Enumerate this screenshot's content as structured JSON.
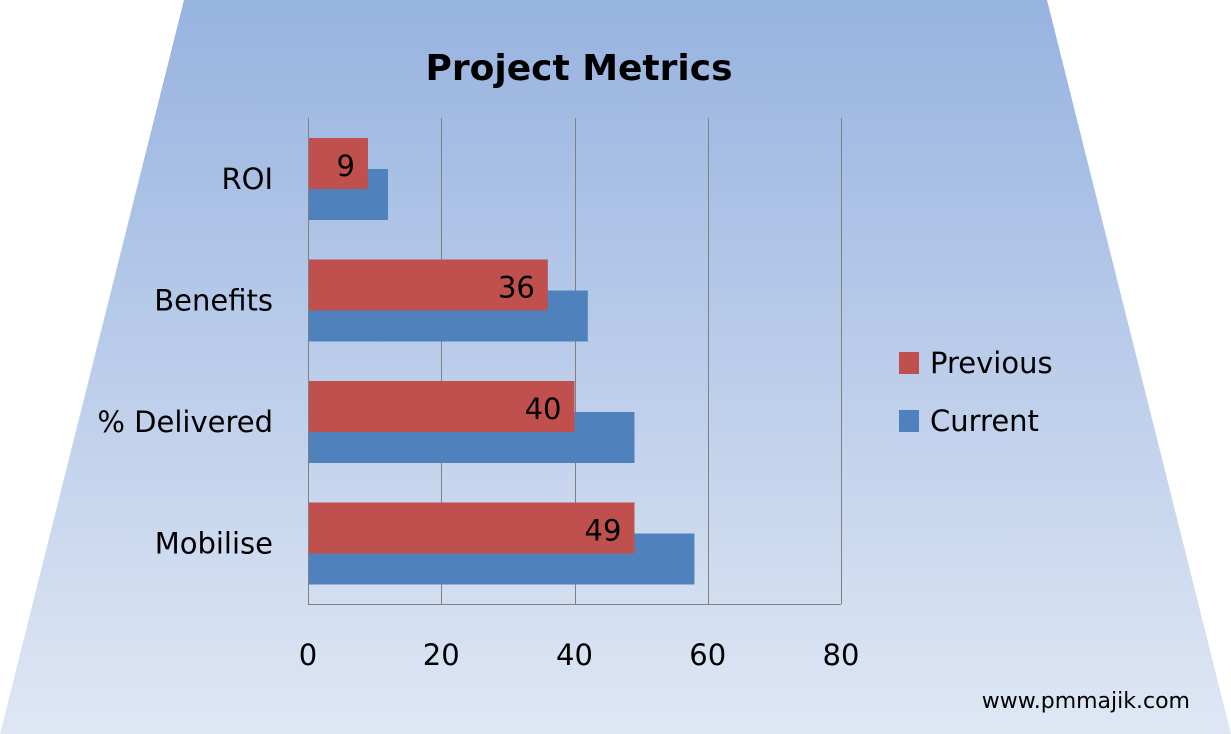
{
  "chart_data": {
    "type": "bar",
    "orientation": "horizontal",
    "title": "Project Metrics",
    "categories": [
      "ROI",
      "Benefits",
      "% Delivered",
      "Mobilise"
    ],
    "series": [
      {
        "name": "Previous",
        "values": [
          9,
          36,
          40,
          49
        ],
        "color": "#C0504D",
        "show_labels": true
      },
      {
        "name": "Current",
        "values": [
          12,
          42,
          49,
          58
        ],
        "color": "#4F81BD",
        "show_labels": false
      }
    ],
    "xlim": [
      0,
      80
    ],
    "xticks": [
      "0",
      "20",
      "40",
      "60",
      "80"
    ],
    "xlabel": "",
    "ylabel": "",
    "grid": "vertical",
    "legend_position": "right"
  },
  "colors": {
    "background_top": "#97B3E0",
    "background_bottom": "#DFE7F4",
    "gridline": "#808080"
  },
  "footer": {
    "website": "www.pmmajik.com"
  }
}
